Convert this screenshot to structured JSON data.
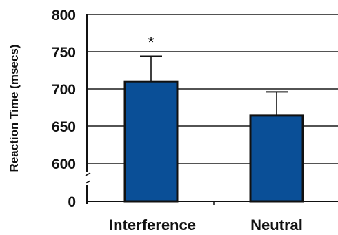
{
  "chart_data": {
    "type": "bar",
    "title": "",
    "xlabel": "",
    "ylabel": "Reaction Time (msecs)",
    "categories": [
      "Interference",
      "Neutral"
    ],
    "values": [
      710,
      664
    ],
    "error_upper": [
      744,
      696
    ],
    "annotations": [
      "*",
      ""
    ],
    "y_ticks": [
      "0",
      "600",
      "650",
      "700",
      "750",
      "800"
    ],
    "y_tick_values": [
      550,
      600,
      650,
      700,
      750,
      800
    ],
    "ylim": [
      550,
      800
    ],
    "axis_break": true,
    "grid": true,
    "bar_color": "#0a4f97",
    "bar_edge_color": "#111111"
  }
}
